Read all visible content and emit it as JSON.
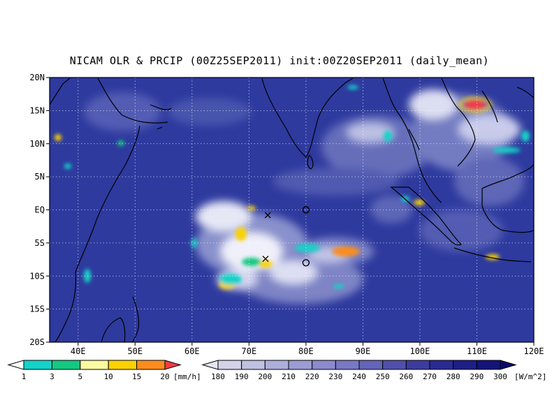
{
  "title": "NICAM OLR & PRCIP (00Z25SEP2011) init:00Z20SEP2011 (daily_mean)",
  "map": {
    "lon_range": [
      35,
      120
    ],
    "lat_range": [
      -20,
      20
    ],
    "lat_ticks": [
      {
        "value": 20,
        "label": "20N"
      },
      {
        "value": 15,
        "label": "15N"
      },
      {
        "value": 10,
        "label": "10N"
      },
      {
        "value": 5,
        "label": "5N"
      },
      {
        "value": 0,
        "label": "EQ"
      },
      {
        "value": -5,
        "label": "5S"
      },
      {
        "value": -10,
        "label": "10S"
      },
      {
        "value": -15,
        "label": "15S"
      },
      {
        "value": -20,
        "label": "20S"
      }
    ],
    "lon_ticks": [
      {
        "value": 40,
        "label": "40E"
      },
      {
        "value": 50,
        "label": "50E"
      },
      {
        "value": 60,
        "label": "60E"
      },
      {
        "value": 70,
        "label": "70E"
      },
      {
        "value": 80,
        "label": "80E"
      },
      {
        "value": 90,
        "label": "90E"
      },
      {
        "value": 100,
        "label": "100E"
      },
      {
        "value": 110,
        "label": "110E"
      },
      {
        "value": 120,
        "label": "120E"
      }
    ],
    "grid": true,
    "background_color": "#2e3a9e"
  },
  "markers": [
    {
      "type": "cross",
      "lon": 73.3,
      "lat": -0.8
    },
    {
      "type": "cross",
      "lon": 72.9,
      "lat": -7.4
    },
    {
      "type": "circle",
      "lon": 80.0,
      "lat": 0.0
    },
    {
      "type": "circle",
      "lon": 80.0,
      "lat": -8.0
    }
  ],
  "precip_colorbar": {
    "labels": [
      "1",
      "3",
      "5",
      "10",
      "15",
      "20"
    ],
    "colors": [
      "#14d2c8",
      "#14c882",
      "#fafaa0",
      "#fad200",
      "#fa8c1e",
      "#f03c46"
    ],
    "unit": "[mm/h]"
  },
  "olr_colorbar": {
    "labels": [
      "180",
      "190",
      "200",
      "210",
      "220",
      "230",
      "240",
      "250",
      "260",
      "270",
      "280",
      "290",
      "300"
    ],
    "colors": [
      "#e6e6f0",
      "#d2d2e8",
      "#c0c0e2",
      "#aeaedc",
      "#9c9cd4",
      "#8a8acc",
      "#7878c4",
      "#6464b8",
      "#5050ac",
      "#3c3ca0",
      "#2a2a94",
      "#1e1e88",
      "#14147a",
      "#0a0a6e"
    ],
    "unit": "[W/m^2]"
  }
}
